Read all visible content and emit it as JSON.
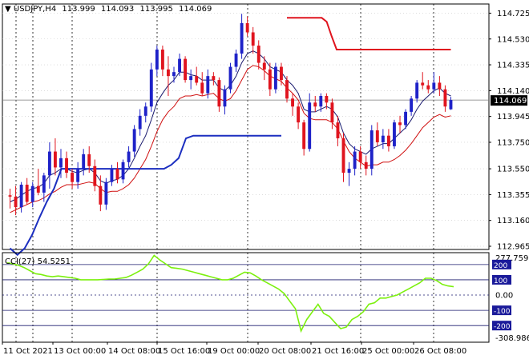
{
  "header": {
    "symbol": "USDJPY,H4",
    "open": "113.999",
    "high": "114.093",
    "low": "113.995",
    "close": "114.069",
    "indicator_label": "CCI(27) 54.5251"
  },
  "colors": {
    "bull": "#1e22c8",
    "bear": "#e0141e",
    "cci": "#7cf00e",
    "hline": "#1a1a6e",
    "grid": "#000000",
    "blue_line": "#1c2fc0",
    "red_line": "#e0141e",
    "upper_envelope": "#1a1a6e",
    "lower_envelope": "#d01010",
    "price_tag_bg": "#000000",
    "cci_tag_bg": "#1a1a9a"
  },
  "chart_data": [
    {
      "type": "candlestick",
      "title": "",
      "ylim": [
        112.965,
        114.77
      ],
      "y_ticks": [
        "114.725",
        "114.530",
        "114.335",
        "114.140",
        "113.945",
        "113.750",
        "113.550",
        "113.355",
        "113.160",
        "112.965"
      ],
      "x_labels": [
        "11 Oct 2021",
        "13 Oct 00:00",
        "14 Oct 08:00",
        "15 Oct 16:00",
        "19 Oct 00:00",
        "20 Oct 08:00",
        "21 Oct 16:00",
        "25 Oct 00:00",
        "26 Oct 08:00"
      ],
      "current_price": "114.069",
      "reference_line": 114.069,
      "candles": [
        [
          113.35,
          113.4,
          113.25,
          113.34
        ],
        [
          113.34,
          113.42,
          113.2,
          113.26
        ],
        [
          113.26,
          113.45,
          113.22,
          113.43
        ],
        [
          113.43,
          113.48,
          113.28,
          113.3
        ],
        [
          113.3,
          113.45,
          113.26,
          113.42
        ],
        [
          113.42,
          113.55,
          113.35,
          113.37
        ],
        [
          113.37,
          113.52,
          113.3,
          113.5
        ],
        [
          113.5,
          113.75,
          113.4,
          113.68
        ],
        [
          113.68,
          113.78,
          113.5,
          113.56
        ],
        [
          113.56,
          113.7,
          113.48,
          113.63
        ],
        [
          113.63,
          113.68,
          113.48,
          113.52
        ],
        [
          113.52,
          113.55,
          113.4,
          113.45
        ],
        [
          113.45,
          113.6,
          113.4,
          113.55
        ],
        [
          113.55,
          113.7,
          113.5,
          113.66
        ],
        [
          113.66,
          113.72,
          113.52,
          113.57
        ],
        [
          113.57,
          113.62,
          113.38,
          113.42
        ],
        [
          113.42,
          113.5,
          113.23,
          113.28
        ],
        [
          113.28,
          113.48,
          113.24,
          113.45
        ],
        [
          113.45,
          113.58,
          113.42,
          113.55
        ],
        [
          113.55,
          113.6,
          113.44,
          113.47
        ],
        [
          113.47,
          113.62,
          113.44,
          113.6
        ],
        [
          113.6,
          113.72,
          113.56,
          113.68
        ],
        [
          113.68,
          113.88,
          113.64,
          113.85
        ],
        [
          113.85,
          114.0,
          113.8,
          113.95
        ],
        [
          113.95,
          114.05,
          113.9,
          114.02
        ],
        [
          114.02,
          114.35,
          113.98,
          114.3
        ],
        [
          114.3,
          114.48,
          114.25,
          114.45
        ],
        [
          114.45,
          114.48,
          114.25,
          114.3
        ],
        [
          114.3,
          114.4,
          114.1,
          114.25
        ],
        [
          114.25,
          114.32,
          114.2,
          114.28
        ],
        [
          114.28,
          114.42,
          114.25,
          114.38
        ],
        [
          114.38,
          114.4,
          114.2,
          114.22
        ],
        [
          114.22,
          114.3,
          114.15,
          114.25
        ],
        [
          114.25,
          114.32,
          114.18,
          114.2
        ],
        [
          114.2,
          114.28,
          114.1,
          114.12
        ],
        [
          114.12,
          114.3,
          114.08,
          114.25
        ],
        [
          114.25,
          114.28,
          114.18,
          114.22
        ],
        [
          114.22,
          114.24,
          113.98,
          114.02
        ],
        [
          114.02,
          114.18,
          113.96,
          114.15
        ],
        [
          114.15,
          114.35,
          114.12,
          114.32
        ],
        [
          114.32,
          114.45,
          114.28,
          114.42
        ],
        [
          114.42,
          114.72,
          114.38,
          114.65
        ],
        [
          114.65,
          114.7,
          114.55,
          114.58
        ],
        [
          114.58,
          114.62,
          114.42,
          114.48
        ],
        [
          114.48,
          114.52,
          114.3,
          114.35
        ],
        [
          114.35,
          114.4,
          114.22,
          114.3
        ],
        [
          114.3,
          114.35,
          114.1,
          114.15
        ],
        [
          114.15,
          114.35,
          114.12,
          114.32
        ],
        [
          114.32,
          114.35,
          114.18,
          114.22
        ],
        [
          114.22,
          114.25,
          114.05,
          114.08
        ],
        [
          114.08,
          114.12,
          113.95,
          114.02
        ],
        [
          114.02,
          114.05,
          113.85,
          113.9
        ],
        [
          113.9,
          113.92,
          113.65,
          113.7
        ],
        [
          113.7,
          114.12,
          113.68,
          114.05
        ],
        [
          114.05,
          114.1,
          113.98,
          114.02
        ],
        [
          114.02,
          114.12,
          113.98,
          114.1
        ],
        [
          114.1,
          114.12,
          114.0,
          114.05
        ],
        [
          114.05,
          114.08,
          113.85,
          113.9
        ],
        [
          113.9,
          113.95,
          113.72,
          113.78
        ],
        [
          113.78,
          113.82,
          113.45,
          113.52
        ],
        [
          113.52,
          113.6,
          113.42,
          113.55
        ],
        [
          113.55,
          113.72,
          113.5,
          113.68
        ],
        [
          113.68,
          113.72,
          113.55,
          113.6
        ],
        [
          113.6,
          113.65,
          113.5,
          113.55
        ],
        [
          113.55,
          113.88,
          113.5,
          113.84
        ],
        [
          113.84,
          113.9,
          113.72,
          113.75
        ],
        [
          113.75,
          113.85,
          113.7,
          113.8
        ],
        [
          113.8,
          113.85,
          113.68,
          113.72
        ],
        [
          113.72,
          113.92,
          113.7,
          113.9
        ],
        [
          113.9,
          113.95,
          113.82,
          113.88
        ],
        [
          113.88,
          114.0,
          113.85,
          113.98
        ],
        [
          113.98,
          114.1,
          113.95,
          114.08
        ],
        [
          114.08,
          114.22,
          114.05,
          114.2
        ],
        [
          114.2,
          114.28,
          114.15,
          114.18
        ],
        [
          114.18,
          114.22,
          114.12,
          114.15
        ],
        [
          114.15,
          114.28,
          114.12,
          114.2
        ],
        [
          114.2,
          114.25,
          114.1,
          114.15
        ],
        [
          114.15,
          114.18,
          113.98,
          114.02
        ],
        [
          113.999,
          114.093,
          113.995,
          114.069
        ]
      ],
      "mid_line": [
        113.3,
        113.32,
        113.35,
        113.38,
        113.4,
        113.41,
        113.44,
        113.5,
        113.52,
        113.55,
        113.55,
        113.53,
        113.52,
        113.54,
        113.55,
        113.52,
        113.46,
        113.44,
        113.46,
        113.47,
        113.5,
        113.55,
        113.63,
        113.72,
        113.8,
        113.92,
        114.05,
        114.12,
        114.18,
        114.22,
        114.28,
        114.28,
        114.26,
        114.25,
        114.22,
        114.22,
        114.22,
        114.16,
        114.14,
        114.18,
        114.25,
        114.35,
        114.42,
        114.44,
        114.42,
        114.38,
        114.32,
        114.3,
        114.28,
        114.22,
        114.18,
        114.12,
        114.0,
        113.98,
        113.98,
        114.0,
        114.02,
        114.0,
        113.94,
        113.82,
        113.74,
        113.7,
        113.68,
        113.66,
        113.7,
        113.72,
        113.74,
        113.74,
        113.78,
        113.82,
        113.86,
        113.92,
        114.0,
        114.06,
        114.1,
        114.14,
        114.16,
        114.12,
        114.1
      ],
      "lower_band": [
        113.22,
        113.24,
        113.26,
        113.28,
        113.3,
        113.31,
        113.33,
        113.36,
        113.38,
        113.41,
        113.43,
        113.43,
        113.43,
        113.44,
        113.45,
        113.44,
        113.4,
        113.37,
        113.38,
        113.38,
        113.4,
        113.43,
        113.48,
        113.55,
        113.62,
        113.72,
        113.83,
        113.92,
        113.98,
        114.02,
        114.08,
        114.1,
        114.1,
        114.11,
        114.1,
        114.11,
        114.12,
        114.08,
        114.06,
        114.08,
        114.14,
        114.22,
        114.3,
        114.33,
        114.32,
        114.29,
        114.25,
        114.23,
        114.21,
        114.16,
        114.12,
        114.07,
        113.97,
        113.93,
        113.92,
        113.92,
        113.92,
        113.9,
        113.85,
        113.76,
        113.68,
        113.63,
        113.6,
        113.57,
        113.58,
        113.58,
        113.6,
        113.6,
        113.62,
        113.65,
        113.69,
        113.74,
        113.8,
        113.86,
        113.9,
        113.94,
        113.96,
        113.94,
        113.95
      ],
      "blue_steps": [
        [
          112.95,
          112.9,
          112.95,
          113.05,
          113.18,
          113.3,
          113.4,
          113.55,
          113.55,
          113.55,
          113.55,
          113.55,
          113.55,
          113.55,
          113.55,
          113.55,
          113.55,
          113.55,
          113.55,
          113.55,
          113.55,
          113.55,
          113.58,
          113.63,
          113.78,
          113.8,
          113.8,
          113.8,
          113.8,
          113.8,
          113.8,
          113.8,
          113.8,
          113.8,
          113.8,
          113.8,
          113.8,
          113.8
        ]
      ],
      "red_steps": [
        114.69,
        114.69,
        114.69,
        114.69,
        114.69,
        114.69,
        114.69,
        114.69,
        114.66,
        114.55,
        114.45,
        114.45,
        114.45,
        114.45,
        114.45,
        114.45,
        114.45,
        114.45,
        114.45,
        114.45,
        114.45,
        114.45,
        114.45,
        114.45,
        114.45,
        114.45,
        114.45,
        114.45,
        114.45,
        114.45,
        114.45,
        114.45,
        114.45,
        114.45
      ]
    },
    {
      "type": "line",
      "title": "CCI(27) 54.5251",
      "ylim": [
        -308.9862,
        277.7596
      ],
      "y_ticks": [
        "277.7596",
        "200",
        "100",
        "0.00",
        "-100",
        "-200",
        "-308.9862"
      ],
      "levels": [
        200,
        100,
        0,
        -100,
        -200
      ],
      "values": [
        212,
        205,
        195,
        180,
        160,
        140,
        135,
        125,
        120,
        125,
        120,
        115,
        110,
        100,
        100,
        100,
        100,
        102,
        105,
        105,
        110,
        115,
        130,
        150,
        170,
        205,
        260,
        230,
        205,
        180,
        175,
        170,
        160,
        150,
        140,
        130,
        120,
        110,
        100,
        100,
        110,
        130,
        150,
        145,
        125,
        100,
        80,
        60,
        40,
        10,
        -40,
        -90,
        -235,
        -160,
        -110,
        -60,
        -120,
        -140,
        -180,
        -220,
        -210,
        -160,
        -140,
        -110,
        -60,
        -50,
        -20,
        -20,
        -10,
        0,
        20,
        40,
        60,
        80,
        110,
        110,
        95,
        70,
        60,
        54.53
      ]
    }
  ]
}
